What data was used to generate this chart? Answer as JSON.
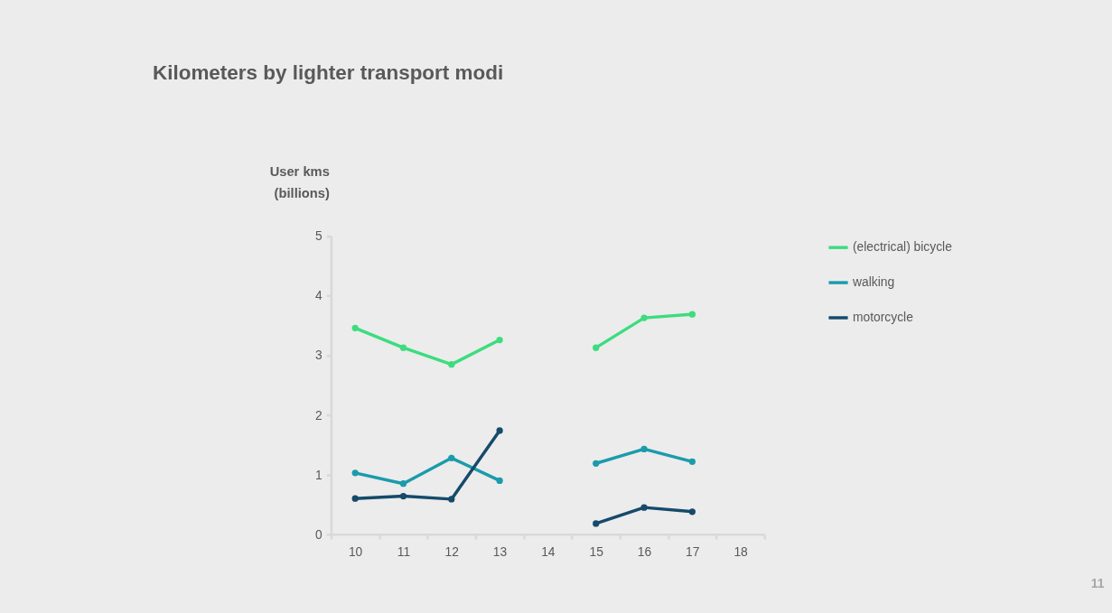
{
  "chart_data": {
    "type": "line",
    "title": "Kilometers by lighter transport modi",
    "ylabel": "User kms\n(billions)",
    "categories": [
      "10",
      "11",
      "12",
      "13",
      "14",
      "15",
      "16",
      "17",
      "18"
    ],
    "series": [
      {
        "name": "(electrical) bicycle",
        "color": "#3ddc7e",
        "values": [
          3.46,
          3.13,
          2.85,
          3.26,
          null,
          3.13,
          3.63,
          3.69,
          null
        ]
      },
      {
        "name": "walking",
        "color": "#1b9bab",
        "values": [
          1.03,
          0.85,
          1.28,
          0.9,
          null,
          1.19,
          1.43,
          1.22,
          null
        ]
      },
      {
        "name": "motorcycle",
        "color": "#154a6b",
        "values": [
          0.6,
          0.64,
          0.59,
          1.74,
          null,
          0.18,
          0.45,
          0.38,
          null
        ]
      }
    ],
    "ylim": [
      0,
      5
    ],
    "yticks": [
      0,
      1,
      2,
      3,
      4,
      5
    ],
    "grid": false,
    "legend": "right",
    "marker": "circle",
    "line_style": "solid",
    "annotations": [
      "11"
    ]
  }
}
